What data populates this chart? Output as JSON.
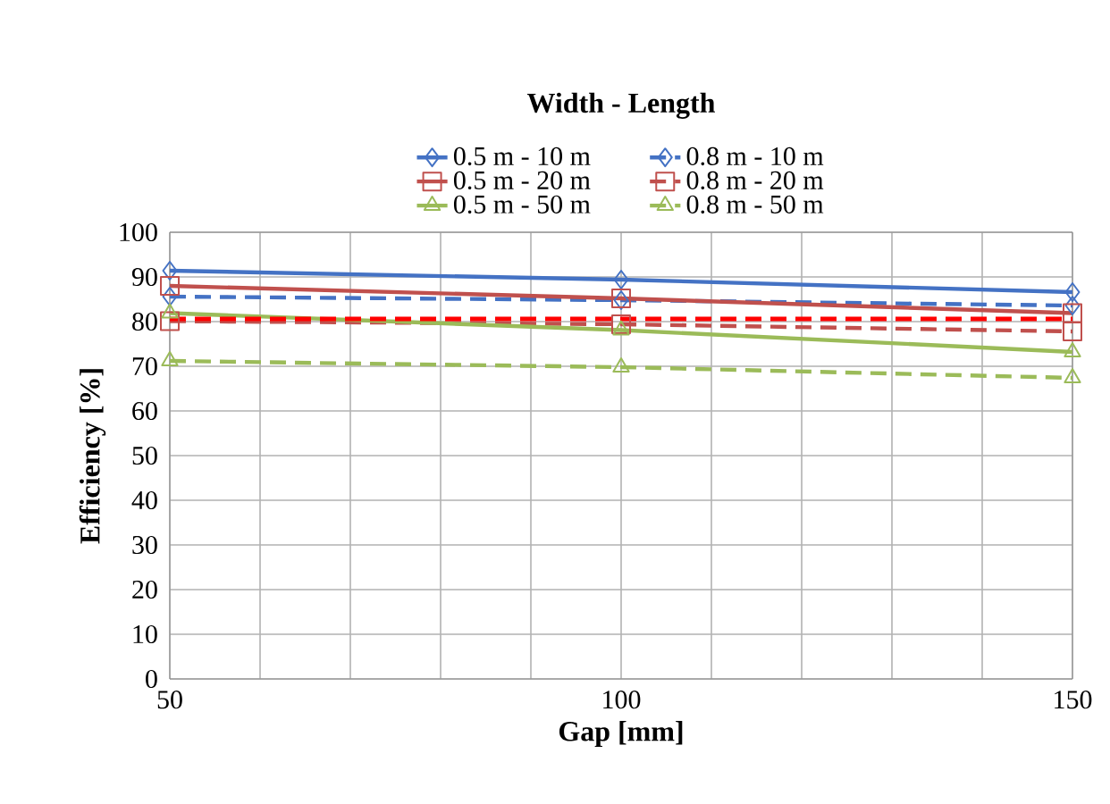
{
  "chart_data": {
    "type": "line",
    "legend_title": "Width - Length",
    "xlabel": "Gap [mm]",
    "ylabel": "Efficiency [%]",
    "x": [
      50,
      100,
      150
    ],
    "series": [
      {
        "name": "0.5 m - 10 m",
        "color": "#4472c4",
        "marker": "diamond",
        "line_style": "solid",
        "values": [
          91.4,
          89.4,
          86.6
        ]
      },
      {
        "name": "0.8 m - 10 m",
        "color": "#4472c4",
        "marker": "diamond",
        "line_style": "dashed",
        "values": [
          85.6,
          84.8,
          83.6
        ]
      },
      {
        "name": "0.5 m - 20 m",
        "color": "#c0504d",
        "marker": "square",
        "line_style": "solid",
        "values": [
          88.0,
          85.2,
          81.9
        ]
      },
      {
        "name": "0.8 m - 20 m",
        "color": "#c0504d",
        "marker": "square",
        "line_style": "dashed",
        "values": [
          80.1,
          79.4,
          77.8
        ]
      },
      {
        "name": "0.5 m - 50 m",
        "color": "#9bbb59",
        "marker": "triangle",
        "line_style": "solid",
        "values": [
          81.9,
          78.1,
          73.2
        ]
      },
      {
        "name": "0.8 m - 50 m",
        "color": "#9bbb59",
        "marker": "triangle",
        "line_style": "dashed",
        "values": [
          71.2,
          69.8,
          67.4
        ]
      }
    ],
    "ref_lines": [
      {
        "axis": "y",
        "value": 80.6,
        "color": "#ff0000",
        "line_style": "dashed"
      }
    ],
    "xlim": [
      50,
      150
    ],
    "ylim": [
      0,
      100
    ],
    "xticks": [
      50,
      {
        "value": 60,
        "label": null
      },
      {
        "value": 70,
        "label": null
      },
      {
        "value": 80,
        "label": null
      },
      {
        "value": 90,
        "label": null
      },
      100,
      {
        "value": 110,
        "label": null
      },
      {
        "value": 120,
        "label": null
      },
      {
        "value": 130,
        "label": null
      },
      {
        "value": 140,
        "label": null
      },
      150
    ],
    "yticks": [
      0,
      10,
      20,
      30,
      40,
      50,
      60,
      70,
      80,
      90,
      100
    ],
    "grid": true,
    "legend": "top"
  }
}
